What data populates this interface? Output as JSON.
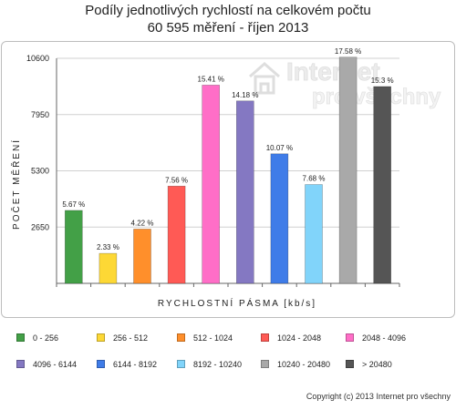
{
  "title": {
    "line1": "Podíly jednotlivých rychlostí na celkovém počtu",
    "line2": "60 595 měření - říjen 2013"
  },
  "watermark": {
    "word1": "Internet",
    "word2": "pro všechny"
  },
  "copyright": "Copyright (c) 2013 Internet pro všechny",
  "chart_data": {
    "type": "bar",
    "xlabel": "RYCHLOSTNÍ PÁSMA [kb/s]",
    "ylabel": "POČET MĚŘENÍ",
    "ylim": [
      0,
      10600
    ],
    "yticks": [
      2650,
      5300,
      7950,
      10600
    ],
    "grid": true,
    "categories": [
      "0 - 256",
      "256 - 512",
      "512 - 1024",
      "1024 - 2048",
      "2048 - 4096",
      "4096 - 6144",
      "6144 - 8192",
      "8192 - 10240",
      "10240 - 20480",
      "> 20480"
    ],
    "values": [
      3436,
      1412,
      2557,
      4581,
      9338,
      8592,
      6102,
      4654,
      10653,
      9271
    ],
    "labels": [
      "5.67 %",
      "2.33 %",
      "4.22 %",
      "7.56 %",
      "15.41 %",
      "14.18 %",
      "10.07 %",
      "7.68 %",
      "17.58 %",
      "15.3 %"
    ],
    "colors": [
      "#43a047",
      "#fdd835",
      "#ff8f2b",
      "#ff5a55",
      "#ff6ec7",
      "#8478c2",
      "#3f7ce8",
      "#81d4fa",
      "#a9a9a9",
      "#555555"
    ],
    "legend_position": "bottom"
  }
}
